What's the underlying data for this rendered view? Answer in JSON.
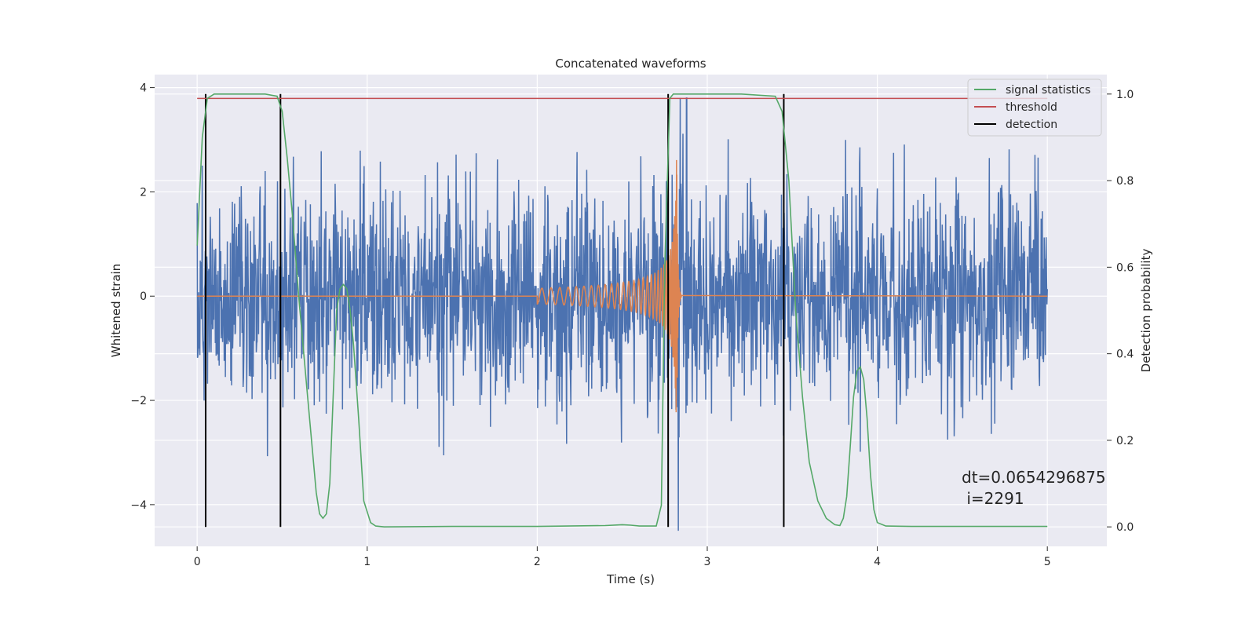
{
  "chart_data": {
    "type": "line",
    "title": "Concatenated waveforms",
    "xlabel": "Time (s)",
    "ylabel_left": "Whitened strain",
    "ylabel_right": "Detection probability",
    "xlim": [
      -0.25,
      5.35
    ],
    "ylim_left": [
      -4.8,
      4.25
    ],
    "ylim_right": [
      -0.045,
      1.045
    ],
    "xticks": [
      0,
      1,
      2,
      3,
      4,
      5
    ],
    "yticks_left": [
      -4,
      -2,
      0,
      2,
      4
    ],
    "yticks_right": [
      0.0,
      0.2,
      0.4,
      0.6,
      0.8,
      1.0
    ],
    "grid": true,
    "legend_position": "top-right",
    "colors": {
      "strain": "#4c72b0",
      "template": "#dd8452",
      "signal_statistics": "#55a868",
      "threshold": "#c44e52",
      "detection": "#000000",
      "axes_background": "#eaeaf2",
      "grid": "#ffffff"
    },
    "series": [
      {
        "name": "",
        "axis": "left",
        "kind": "noise",
        "description_values": {
          "x_start": 0.0,
          "x_end": 5.0,
          "typical_amplitude": 1.0,
          "max": 3.8,
          "min": -4.5
        }
      },
      {
        "name": "",
        "axis": "left",
        "kind": "chirp",
        "x_start": 2.0,
        "x_merger": 2.82,
        "x_end": 5.0,
        "peak_amplitude": 2.8
      },
      {
        "name": "signal statistics",
        "axis": "right",
        "x": [
          0,
          0.03,
          0.06,
          0.1,
          0.2,
          0.3,
          0.4,
          0.47,
          0.5,
          0.53,
          0.56,
          0.6,
          0.65,
          0.7,
          0.72,
          0.74,
          0.76,
          0.78,
          0.8,
          0.82,
          0.84,
          0.86,
          0.88,
          0.9,
          0.92,
          0.95,
          0.98,
          1.02,
          1.05,
          1.1,
          1.5,
          2.0,
          2.4,
          2.5,
          2.55,
          2.6,
          2.7,
          2.73,
          2.75,
          2.78,
          2.8,
          2.9,
          3.0,
          3.2,
          3.4,
          3.44,
          3.48,
          3.52,
          3.56,
          3.6,
          3.65,
          3.7,
          3.75,
          3.78,
          3.8,
          3.82,
          3.84,
          3.86,
          3.88,
          3.9,
          3.92,
          3.94,
          3.96,
          3.98,
          4.0,
          4.05,
          4.2,
          4.6,
          5.0
        ],
        "values": [
          0.65,
          0.9,
          0.99,
          1.0,
          1.0,
          1.0,
          1.0,
          0.995,
          0.96,
          0.85,
          0.72,
          0.52,
          0.3,
          0.08,
          0.03,
          0.02,
          0.03,
          0.1,
          0.3,
          0.5,
          0.55,
          0.56,
          0.55,
          0.5,
          0.42,
          0.25,
          0.06,
          0.01,
          0.002,
          0.0,
          0.001,
          0.001,
          0.003,
          0.005,
          0.004,
          0.002,
          0.002,
          0.05,
          0.6,
          0.99,
          1.0,
          1.0,
          1.0,
          1.0,
          0.995,
          0.96,
          0.8,
          0.5,
          0.3,
          0.15,
          0.06,
          0.02,
          0.005,
          0.003,
          0.02,
          0.07,
          0.18,
          0.3,
          0.36,
          0.37,
          0.34,
          0.25,
          0.12,
          0.04,
          0.01,
          0.002,
          0.001,
          0.001,
          0.001
        ]
      },
      {
        "name": "threshold",
        "axis": "right",
        "x": [
          0,
          5.0
        ],
        "values": [
          0.99,
          0.99
        ]
      },
      {
        "name": "detection",
        "axis": "right",
        "kind": "vlines",
        "x": [
          0.05,
          0.49,
          2.77,
          3.45
        ],
        "y_range": [
          0.0,
          1.0
        ]
      }
    ],
    "annotation": {
      "line1": "dt=0.0654296875",
      "line2": " i=2291"
    }
  }
}
